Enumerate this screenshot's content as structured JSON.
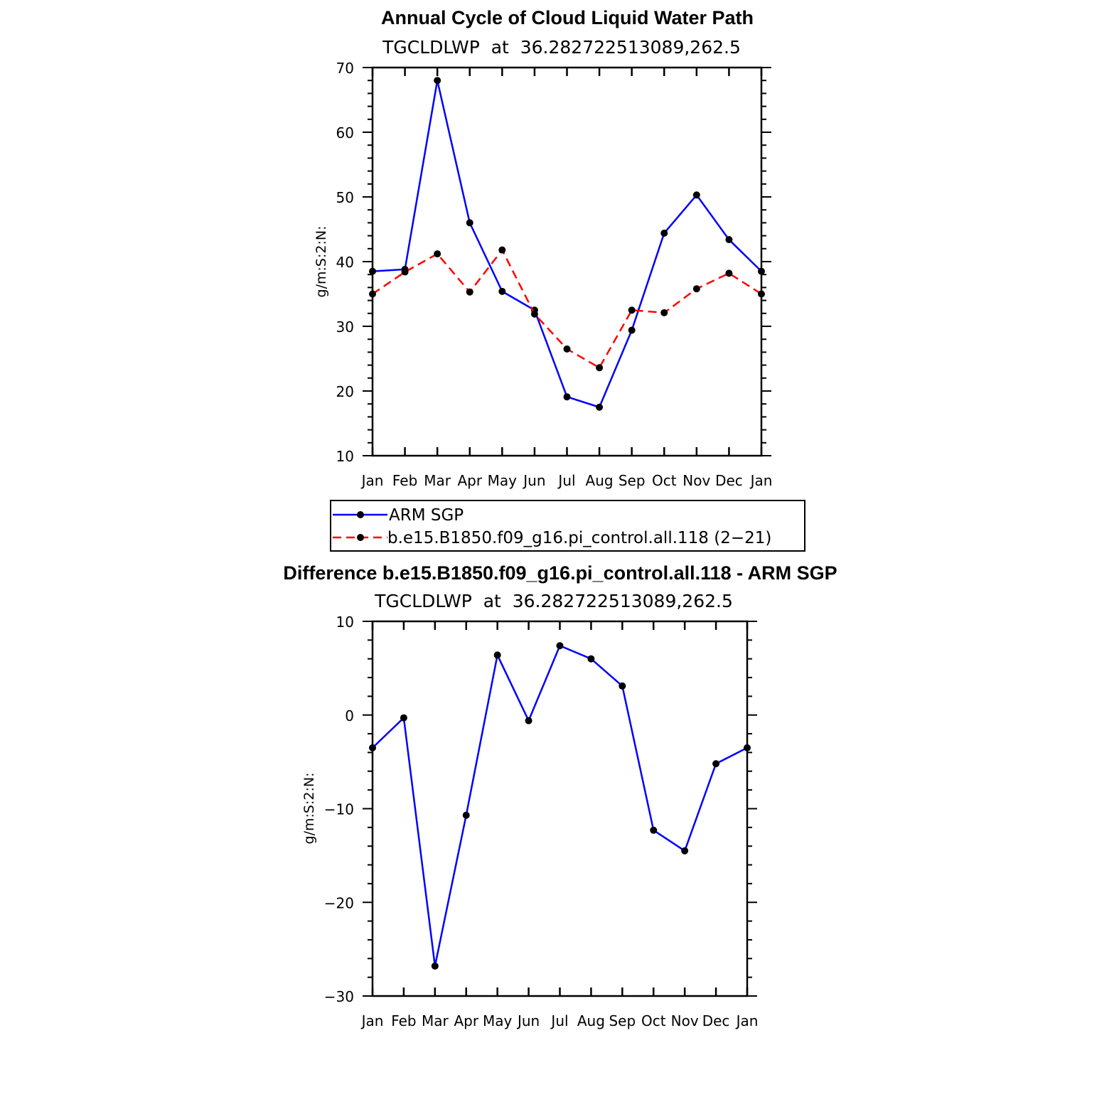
{
  "chart_data": [
    {
      "type": "line",
      "title": "Annual Cycle of Cloud Liquid Water Path",
      "subtitle": "TGCLDLWP  at  36.282722513089,262.5",
      "ylabel": "g/m:S:2:N:",
      "xlabel": "",
      "categories": [
        "Jan",
        "Feb",
        "Mar",
        "Apr",
        "May",
        "Jun",
        "Jul",
        "Aug",
        "Sep",
        "Oct",
        "Nov",
        "Dec",
        "Jan"
      ],
      "ylim": [
        10,
        70
      ],
      "yticks": [
        10,
        20,
        30,
        40,
        50,
        60,
        70
      ],
      "grid": false,
      "legend_placement": "bottom",
      "series": [
        {
          "name": "ARM SGP",
          "color": "#0000ff",
          "dash": "solid",
          "values": [
            38.5,
            38.8,
            68.0,
            46.0,
            35.4,
            32.5,
            19.1,
            17.5,
            29.4,
            44.4,
            50.3,
            43.4,
            38.5
          ]
        },
        {
          "name": "b.e15.B1850.f09_g16.pi_control.all.118 (2−21)",
          "color": "#ff0000",
          "dash": "dashed",
          "values": [
            35.0,
            38.4,
            41.2,
            35.3,
            41.8,
            31.9,
            26.5,
            23.6,
            32.5,
            32.1,
            35.8,
            38.2,
            35.0
          ]
        }
      ]
    },
    {
      "type": "line",
      "title": "Difference b.e15.B1850.f09_g16.pi_control.all.118 - ARM SGP",
      "subtitle": "TGCLDLWP  at  36.282722513089,262.5",
      "ylabel": "g/m:S:2:N:",
      "xlabel": "",
      "categories": [
        "Jan",
        "Feb",
        "Mar",
        "Apr",
        "May",
        "Jun",
        "Jul",
        "Aug",
        "Sep",
        "Oct",
        "Nov",
        "Dec",
        "Jan"
      ],
      "ylim": [
        -30,
        10
      ],
      "yticks": [
        -30,
        -20,
        -10,
        0,
        10
      ],
      "ytick_labels": [
        "−30",
        "−20",
        "−10",
        "0",
        "10"
      ],
      "grid": false,
      "series": [
        {
          "color": "#0000ff",
          "dash": "solid",
          "values": [
            -3.5,
            -0.3,
            -26.8,
            -10.7,
            6.4,
            -0.6,
            7.4,
            6.0,
            3.1,
            -12.3,
            -14.5,
            -5.2,
            -3.5
          ]
        }
      ]
    }
  ]
}
